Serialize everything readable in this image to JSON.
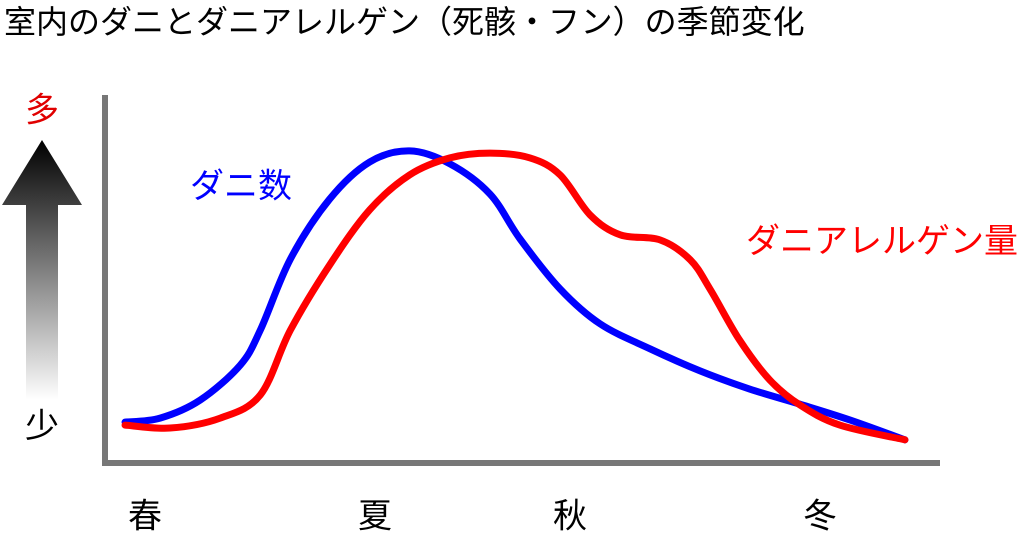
{
  "chart_data": {
    "type": "line",
    "title": "室内のダニとダニアレルゲン（死骸・フン）の季節変化",
    "y_high_label": "多",
    "y_low_label": "少",
    "categories": [
      "春",
      "夏",
      "秋",
      "冬"
    ],
    "xlim": [
      0,
      100
    ],
    "ylim": [
      0,
      100
    ],
    "series": [
      {
        "name": "ダニ数",
        "color": "#0000ff",
        "x": [
          2.4,
          6.6,
          11.4,
          16.2,
          18.6,
          22.2,
          26.9,
          31.7,
          36.5,
          41.3,
          46.1,
          49.7,
          54.5,
          59.3,
          65.3,
          71.3,
          77.2,
          83.2,
          89.2,
          95.8
        ],
        "values": [
          11.1,
          12.2,
          17.1,
          26.6,
          36.1,
          55.4,
          71.7,
          81.8,
          84.8,
          81.3,
          73.1,
          60.9,
          47.3,
          37.8,
          31.0,
          25.0,
          20.1,
          16.0,
          11.7,
          6.3
        ]
      },
      {
        "name": "ダニアレルゲン量",
        "color": "#ff0000",
        "x": [
          2.4,
          7.8,
          13.8,
          18.6,
          22.2,
          26.9,
          31.7,
          36.5,
          41.3,
          46.1,
          50.9,
          54.5,
          58.1,
          61.7,
          66.5,
          70.1,
          72.5,
          76.0,
          79.6,
          83.2,
          88.0,
          95.8
        ],
        "values": [
          10.3,
          9.5,
          12.2,
          18.5,
          36.1,
          53.8,
          68.8,
          78.3,
          82.9,
          84.2,
          82.9,
          78.3,
          67.4,
          62.0,
          60.6,
          55.2,
          47.1,
          33.4,
          22.6,
          15.8,
          10.3,
          6.3
        ]
      }
    ]
  }
}
